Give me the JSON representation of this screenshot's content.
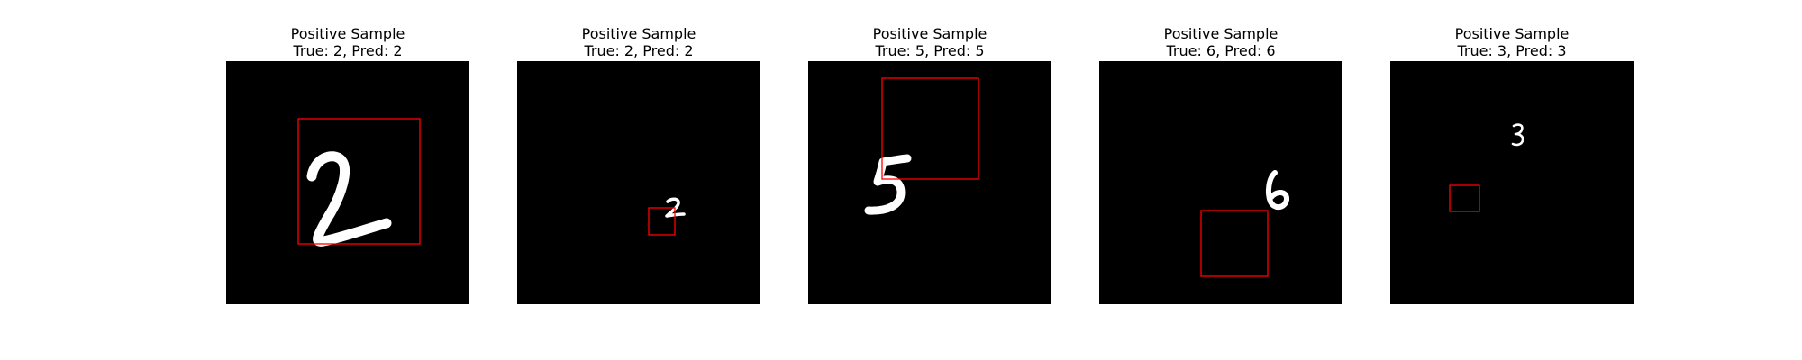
{
  "panels": [
    {
      "title": "Positive Sample",
      "subtitle": "True: 2, Pred: 2",
      "true_label": 2,
      "pred_label": 2
    },
    {
      "title": "Positive Sample",
      "subtitle": "True: 2, Pred: 2",
      "true_label": 2,
      "pred_label": 2
    },
    {
      "title": "Positive Sample",
      "subtitle": "True: 5, Pred: 5",
      "true_label": 5,
      "pred_label": 5
    },
    {
      "title": "Positive Sample",
      "subtitle": "True: 6, Pred: 6",
      "true_label": 6,
      "pred_label": 6
    },
    {
      "title": "Positive Sample",
      "subtitle": "True: 3, Pred: 3",
      "true_label": 3,
      "pred_label": 3
    }
  ],
  "colors": {
    "background": "#000000",
    "digit": "#ffffff",
    "box": "#ff0000"
  }
}
